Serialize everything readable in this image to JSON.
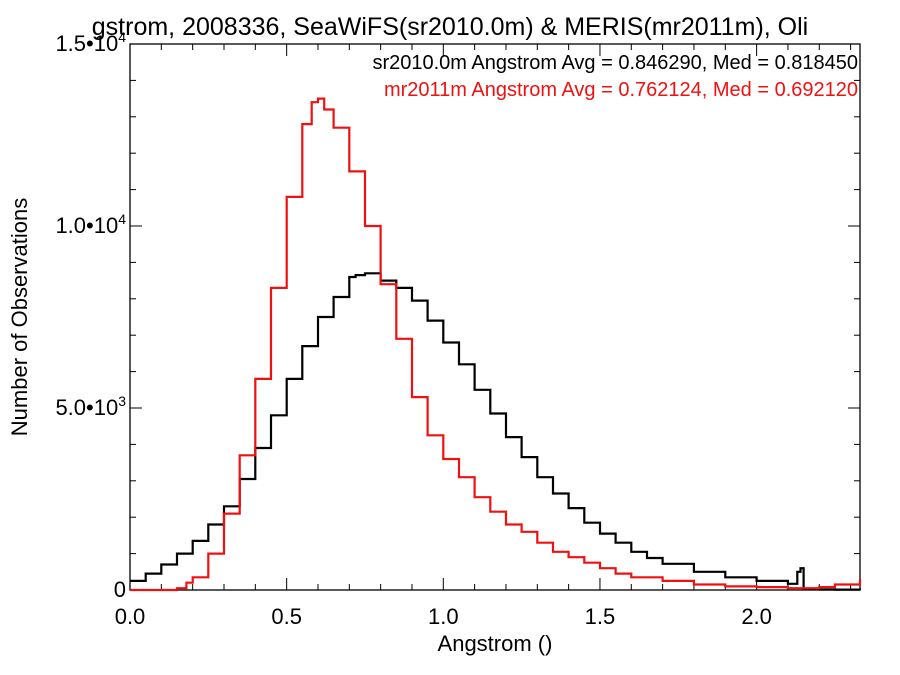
{
  "chart_data": {
    "type": "line",
    "step": true,
    "title": "gstrom, 2008336, SeaWiFS(sr2010.0m) & MERIS(mr2011m), Oli",
    "xlabel": "Angstrom ()",
    "ylabel": "Number of Observations",
    "xlim": [
      0.0,
      2.33
    ],
    "ylim": [
      0,
      15000
    ],
    "x_ticks": [
      {
        "value": 0.0,
        "label": "0.0"
      },
      {
        "value": 0.5,
        "label": "0.5"
      },
      {
        "value": 1.0,
        "label": "1.0"
      },
      {
        "value": 1.5,
        "label": "1.5"
      },
      {
        "value": 2.0,
        "label": "2.0"
      }
    ],
    "y_ticks": [
      {
        "value": 0,
        "mantissa": "0",
        "exponent": ""
      },
      {
        "value": 5000,
        "mantissa": "5.0•10",
        "exponent": "3"
      },
      {
        "value": 10000,
        "mantissa": "1.0•10",
        "exponent": "4"
      },
      {
        "value": 15000,
        "mantissa": "1.5•10",
        "exponent": "4"
      }
    ],
    "legend": [
      {
        "text": "sr2010.0m Angstrom Avg = 0.846290, Med = 0.818450",
        "color": "#000000"
      },
      {
        "text": "mr2011m Angstrom Avg = 0.762124, Med = 0.692120",
        "color": "#ee1111"
      }
    ],
    "series": [
      {
        "color": "#000000",
        "x": [
          0.0,
          0.05,
          0.1,
          0.15,
          0.2,
          0.25,
          0.3,
          0.35,
          0.4,
          0.45,
          0.5,
          0.55,
          0.6,
          0.65,
          0.7,
          0.72,
          0.75,
          0.8,
          0.85,
          0.9,
          0.95,
          1.0,
          1.05,
          1.1,
          1.15,
          1.2,
          1.25,
          1.3,
          1.35,
          1.4,
          1.45,
          1.5,
          1.55,
          1.6,
          1.65,
          1.7,
          1.8,
          1.9,
          2.0,
          2.1,
          2.13,
          2.14,
          2.15,
          2.2,
          2.25,
          2.33
        ],
        "y": [
          250,
          450,
          700,
          1000,
          1350,
          1800,
          2300,
          3050,
          3900,
          4800,
          5800,
          6700,
          7500,
          8050,
          8600,
          8650,
          8700,
          8500,
          8300,
          7950,
          7400,
          6800,
          6200,
          5500,
          4850,
          4200,
          3650,
          3100,
          2650,
          2250,
          1850,
          1550,
          1300,
          1050,
          880,
          720,
          500,
          350,
          250,
          170,
          500,
          600,
          30,
          15,
          10,
          5
        ]
      },
      {
        "color": "#ee1111",
        "x": [
          0.0,
          0.05,
          0.1,
          0.15,
          0.18,
          0.2,
          0.25,
          0.3,
          0.35,
          0.4,
          0.45,
          0.5,
          0.55,
          0.58,
          0.6,
          0.62,
          0.65,
          0.7,
          0.75,
          0.8,
          0.85,
          0.9,
          0.95,
          1.0,
          1.05,
          1.1,
          1.15,
          1.2,
          1.25,
          1.3,
          1.35,
          1.4,
          1.45,
          1.5,
          1.55,
          1.6,
          1.7,
          1.8,
          1.9,
          2.0,
          2.1,
          2.2,
          2.25,
          2.33
        ],
        "y": [
          0,
          0,
          0,
          50,
          200,
          350,
          1000,
          2100,
          3700,
          5800,
          8300,
          10800,
          12800,
          13400,
          13500,
          13200,
          12700,
          11500,
          10000,
          8400,
          6900,
          5300,
          4250,
          3600,
          3100,
          2550,
          2150,
          1800,
          1600,
          1300,
          1050,
          900,
          750,
          600,
          450,
          350,
          250,
          150,
          100,
          80,
          50,
          80,
          150,
          300
        ]
      }
    ]
  }
}
